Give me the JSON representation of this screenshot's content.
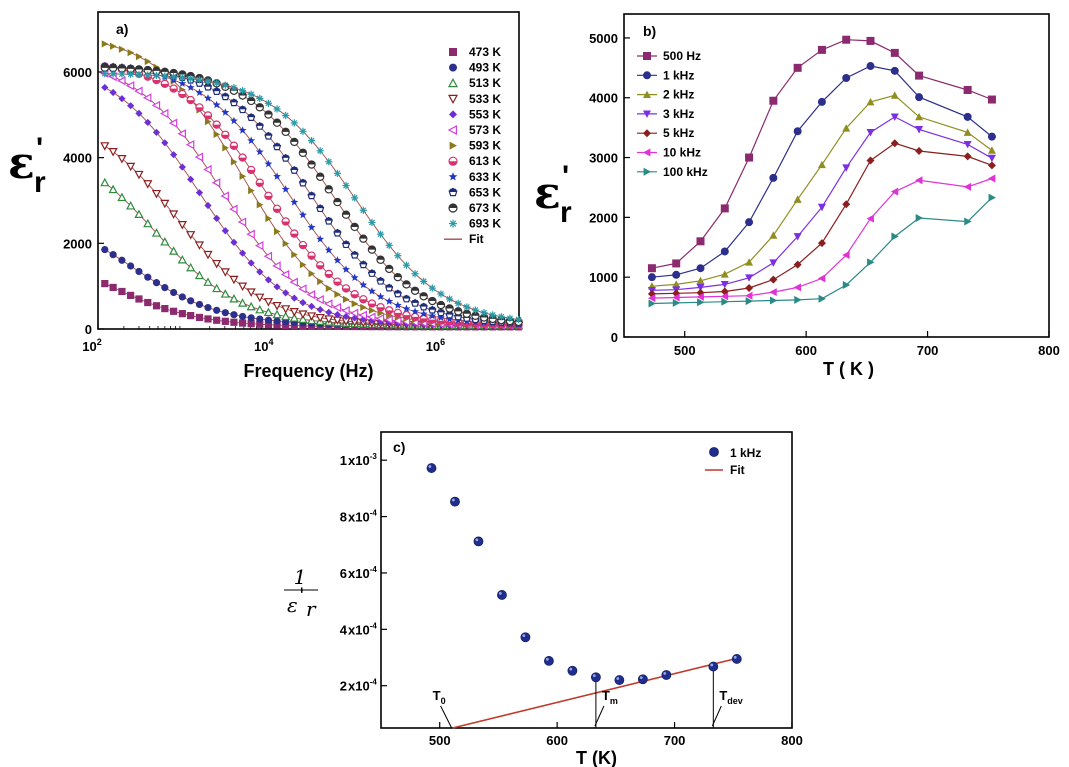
{
  "chart_data": [
    {
      "type": "scatter",
      "panel_label": "a)",
      "xlabel": "Frequency (Hz)",
      "ylabel": "ε",
      "ylabel_sub": "r",
      "ylabel_prime": "'",
      "xscale": "log",
      "xlim": [
        100,
        8000000
      ],
      "ylim": [
        0,
        7400
      ],
      "x_ticks": [
        {
          "value": 100,
          "base": "10",
          "exp": "2"
        },
        {
          "value": 10000,
          "base": "10",
          "exp": "4"
        },
        {
          "value": 1000000,
          "base": "10",
          "exp": "6"
        }
      ],
      "y_ticks": [
        0,
        2000,
        4000,
        6000
      ],
      "legend_position": "top-right",
      "fit_label": "Fit",
      "fit_color": "#a04a48",
      "x": [
        120,
        150,
        190,
        240,
        300,
        380,
        480,
        600,
        760,
        960,
        1200,
        1520,
        1910,
        2410,
        3040,
        3830,
        4830,
        6080,
        7660,
        9660,
        12170,
        15340,
        19330,
        24360,
        30700,
        38690,
        48760,
        61450,
        77440,
        97600,
        123000,
        155000,
        195300,
        246200,
        310200,
        391000,
        492700,
        620900,
        782500,
        986200,
        1243000,
        1566000,
        1974000,
        2488000,
        3135000,
        3951000,
        4979000,
        6275000,
        7909000
      ],
      "series": [
        {
          "name": "473 K",
          "color": "#8b2a6e",
          "marker": "square",
          "eps0": 50,
          "a": 1900,
          "b": 0,
          "fc": 100000
        },
        {
          "name": "493 K",
          "color": "#2c2f8c",
          "marker": "circle",
          "eps0": 90,
          "a": 2700,
          "b": 0,
          "fc": 100000
        },
        {
          "name": "513 K",
          "color": "#2e8b3e",
          "marker": "triangle-up-open",
          "eps0": 80,
          "a": 4400,
          "b": 0,
          "fc": 100000
        },
        {
          "name": "533 K",
          "color": "#8b1f1f",
          "marker": "triangle-down-open",
          "eps0": 80,
          "a": 5000,
          "b": 0,
          "fc": 100000
        },
        {
          "name": "553 K",
          "color": "#6b2fd6",
          "marker": "diamond",
          "eps0": 80,
          "a": 6200,
          "b": 0,
          "fc": 100000
        },
        {
          "name": "573 K",
          "color": "#d43fe0",
          "marker": "triangle-left-open",
          "eps0": 80,
          "a": 6300,
          "b": 0,
          "fc": 100000
        },
        {
          "name": "593 K",
          "color": "#8a7a1c",
          "marker": "triangle-right",
          "eps0": 80,
          "a": 6850,
          "b": 0,
          "fc": 100000
        },
        {
          "name": "613 K",
          "color": "#d8336f",
          "marker": "circle-half",
          "eps0": 80,
          "a": 6200,
          "b": 0,
          "fc": 100000
        },
        {
          "name": "633 K",
          "color": "#2237c9",
          "marker": "star",
          "eps0": 80,
          "a": 6150,
          "b": 0,
          "fc": 100000
        },
        {
          "name": "653 K",
          "color": "#1f2d78",
          "marker": "pentagon-half",
          "eps0": 80,
          "a": 6100,
          "b": 0,
          "fc": 100000
        },
        {
          "name": "673 K",
          "color": "#333333",
          "marker": "circle-half-dark",
          "eps0": 80,
          "a": 6050,
          "b": 0,
          "fc": 100000
        },
        {
          "name": "693 K",
          "color": "#2a9aa6",
          "marker": "asterisk",
          "eps0": 80,
          "a": 5900,
          "b": 0,
          "fc": 100000
        }
      ]
    },
    {
      "type": "line",
      "panel_label": "b)",
      "xlabel": "T ( K )",
      "ylabel": "ε",
      "ylabel_sub": "r",
      "ylabel_prime": "'",
      "xlim": [
        450,
        800
      ],
      "ylim": [
        0,
        5400
      ],
      "x_ticks": [
        500,
        600,
        700,
        800
      ],
      "y_ticks": [
        0,
        1000,
        2000,
        3000,
        4000,
        5000
      ],
      "legend_position": "top-left",
      "x": [
        473,
        493,
        513,
        533,
        553,
        573,
        593,
        613,
        633,
        653,
        673,
        693,
        733,
        753
      ],
      "series": [
        {
          "name": "500 Hz",
          "color": "#8b2a6e",
          "marker": "square",
          "values": [
            1150,
            1230,
            1600,
            2150,
            3000,
            3950,
            4500,
            4800,
            4970,
            4950,
            4750,
            4370,
            4130,
            3970
          ]
        },
        {
          "name": "1 kHz",
          "color": "#2c2f8c",
          "marker": "circle",
          "values": [
            1000,
            1040,
            1150,
            1430,
            1920,
            2660,
            3440,
            3930,
            4330,
            4530,
            4450,
            4010,
            3680,
            3350
          ]
        },
        {
          "name": "2 kHz",
          "color": "#8f8f1f",
          "marker": "triangle-up",
          "values": [
            850,
            880,
            940,
            1050,
            1250,
            1700,
            2300,
            2880,
            3490,
            3930,
            4040,
            3680,
            3420,
            3120
          ]
        },
        {
          "name": "3 kHz",
          "color": "#7b2fe0",
          "marker": "triangle-down",
          "values": [
            780,
            790,
            830,
            880,
            990,
            1240,
            1680,
            2170,
            2830,
            3420,
            3680,
            3470,
            3220,
            2990
          ]
        },
        {
          "name": "5 kHz",
          "color": "#8b1f1f",
          "marker": "diamond",
          "values": [
            720,
            730,
            740,
            760,
            820,
            960,
            1210,
            1570,
            2220,
            2950,
            3240,
            3110,
            3020,
            2870
          ]
        },
        {
          "name": "10 kHz",
          "color": "#e033d6",
          "marker": "triangle-left",
          "values": [
            650,
            660,
            670,
            680,
            690,
            750,
            830,
            980,
            1370,
            1980,
            2430,
            2620,
            2510,
            2650
          ]
        },
        {
          "name": "100 kHz",
          "color": "#2a8a86",
          "marker": "triangle-right",
          "values": [
            560,
            570,
            580,
            590,
            600,
            610,
            620,
            640,
            870,
            1250,
            1680,
            1990,
            1930,
            2330
          ]
        }
      ]
    },
    {
      "type": "scatter",
      "panel_label": "c)",
      "xlabel": "T (K)",
      "ylabel_num": "1",
      "ylabel_den": "ε",
      "ylabel_den_sub": "r",
      "ylabel_prime": "'",
      "xlim": [
        450,
        800
      ],
      "ylim": [
        5e-05,
        0.0011
      ],
      "x_ticks": [
        500,
        600,
        700,
        800
      ],
      "y_ticks": [
        {
          "value": 0.0002,
          "mant": "2",
          "exp": "-4"
        },
        {
          "value": 0.0004,
          "mant": "4",
          "exp": "-4"
        },
        {
          "value": 0.0006,
          "mant": "6",
          "exp": "-4"
        },
        {
          "value": 0.0008,
          "mant": "8",
          "exp": "-4"
        },
        {
          "value": 0.001,
          "mant": "1",
          "exp": "-3"
        }
      ],
      "legend_position": "top-right",
      "series": [
        {
          "name": "1 kHz",
          "color": "#1f2d8c",
          "marker": "sphere",
          "x": [
            493,
            513,
            533,
            553,
            573,
            593,
            613,
            633,
            653,
            673,
            693,
            733,
            753
          ],
          "values": [
            0.000972,
            0.000853,
            0.000712,
            0.000522,
            0.000372,
            0.000288,
            0.000253,
            0.00023,
            0.00022,
            0.000223,
            0.000238,
            0.000268,
            0.000295
          ]
        },
        {
          "name": "Fit",
          "color": "#c0392b",
          "marker": "none",
          "x": [
            511,
            753
          ],
          "values": [
            5e-05,
            0.000297
          ]
        }
      ],
      "annotations": [
        {
          "label": "T",
          "sub": "0",
          "x": 511,
          "y": 5e-05
        },
        {
          "label": "T",
          "sub": "m",
          "x": 633,
          "y": 0.00023
        },
        {
          "label": "T",
          "sub": "dev",
          "x": 733,
          "y": 0.000268
        }
      ]
    }
  ]
}
